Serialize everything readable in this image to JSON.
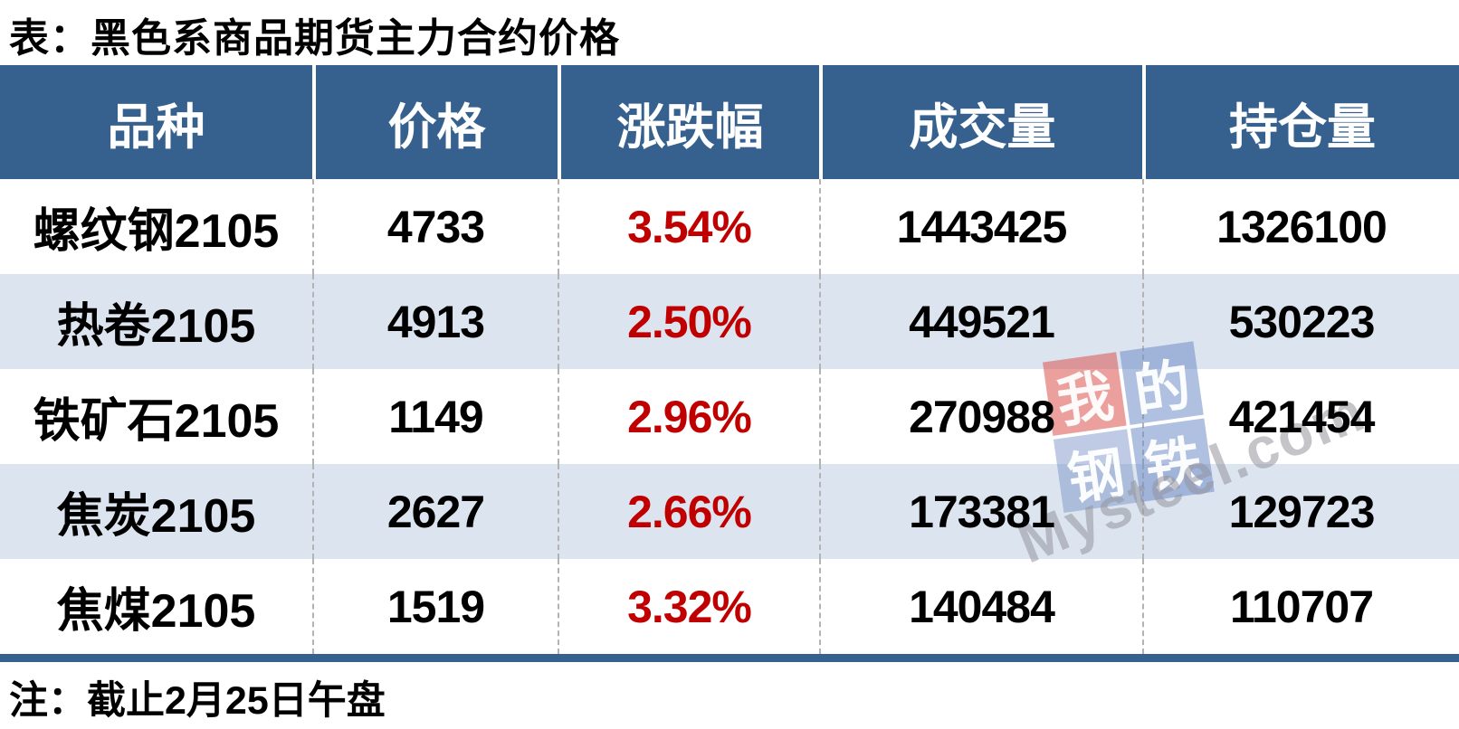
{
  "title": "表：黑色系商品期货主力合约价格",
  "note": "注：截止2月25日午盘",
  "table": {
    "columns": [
      "品种",
      "价格",
      "涨跌幅",
      "成交量",
      "持仓量"
    ],
    "rows": [
      {
        "variety": "螺纹钢2105",
        "price": "4733",
        "change": "3.54%",
        "volume": "1443425",
        "open_interest": "1326100"
      },
      {
        "variety": "热卷2105",
        "price": "4913",
        "change": "2.50%",
        "volume": "449521",
        "open_interest": "530223"
      },
      {
        "variety": "铁矿石2105",
        "price": "1149",
        "change": "2.96%",
        "volume": "270988",
        "open_interest": "421454"
      },
      {
        "variety": "焦炭2105",
        "price": "2627",
        "change": "2.66%",
        "volume": "173381",
        "open_interest": "129723"
      },
      {
        "variety": "焦煤2105",
        "price": "1519",
        "change": "3.32%",
        "volume": "140484",
        "open_interest": "110707"
      }
    ]
  },
  "watermark": {
    "tiles": [
      "我",
      "的",
      "钢",
      "铁"
    ],
    "brand": "Mysteel.com"
  },
  "colors": {
    "header_bg": "#36618f",
    "row_alt_bg": "#dce5ef",
    "change_red": "#c00000",
    "divider_dash": "#b3b3b3",
    "bottom_bar": "#36618f"
  },
  "chart_data": {
    "type": "table",
    "title": "表：黑色系商品期货主力合约价格",
    "columns": [
      "品种",
      "价格",
      "涨跌幅",
      "成交量",
      "持仓量"
    ],
    "rows": [
      [
        "螺纹钢2105",
        4733,
        "3.54%",
        1443425,
        1326100
      ],
      [
        "热卷2105",
        4913,
        "2.50%",
        449521,
        530223
      ],
      [
        "铁矿石2105",
        1149,
        "2.96%",
        270988,
        421454
      ],
      [
        "焦炭2105",
        2627,
        "2.66%",
        173381,
        129723
      ],
      [
        "焦煤2105",
        1519,
        "3.32%",
        140484,
        110707
      ]
    ],
    "note": "注：截止2月25日午盘"
  }
}
